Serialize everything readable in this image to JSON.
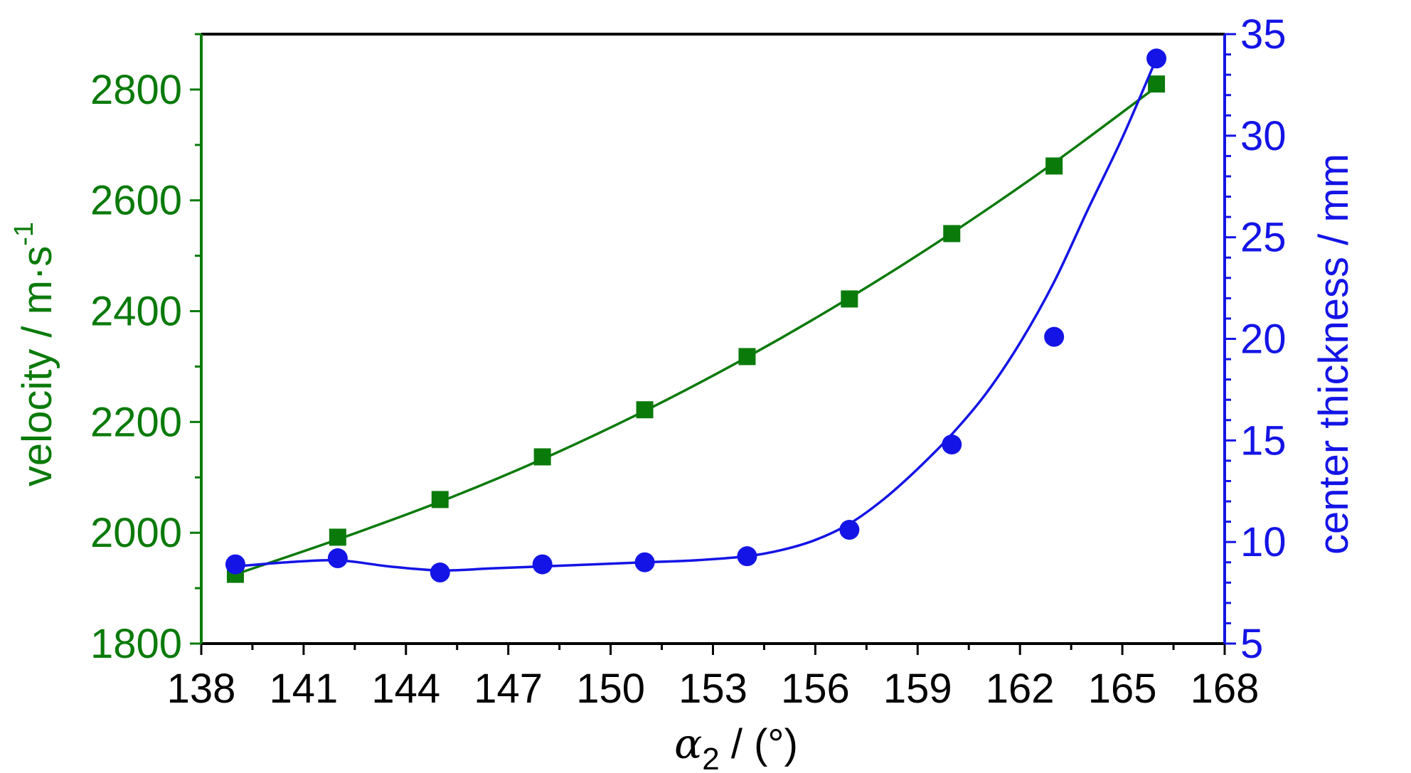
{
  "chart_data": {
    "type": "line",
    "x_axis": {
      "label_symbol": "α",
      "label_subscript": "2",
      "label_unit": " / (°)",
      "range": [
        138,
        168
      ],
      "ticks": [
        138,
        141,
        144,
        147,
        150,
        153,
        156,
        159,
        162,
        165,
        168
      ],
      "minor_step": 1.5
    },
    "y_left": {
      "label_main": "velocity / m·s",
      "label_superscript": "-1",
      "range": [
        1800,
        2900
      ],
      "ticks": [
        1800,
        2000,
        2200,
        2400,
        2600,
        2800
      ],
      "minor_step": 100,
      "color": "#0a7a0a"
    },
    "y_right": {
      "label": "center thickness / mm",
      "range": [
        5,
        35
      ],
      "ticks": [
        5,
        10,
        15,
        20,
        25,
        30,
        35
      ],
      "minor_step": 1,
      "color": "#1414e6"
    },
    "series": [
      {
        "axis": "left",
        "marker": "square",
        "color": "#0a7a0a",
        "x": [
          139,
          142,
          145,
          148,
          151,
          154,
          157,
          160,
          163,
          166
        ],
        "y": [
          1925,
          1992,
          2060,
          2137,
          2222,
          2318,
          2422,
          2540,
          2662,
          2810
        ],
        "fit_y": [
          1925,
          1988,
          2056,
          2133,
          2220,
          2317,
          2424,
          2541,
          2668,
          2805
        ]
      },
      {
        "axis": "right",
        "marker": "circle",
        "color": "#1414e6",
        "x": [
          139,
          142,
          145,
          148,
          151,
          154,
          157,
          160,
          163,
          166
        ],
        "y": [
          8.9,
          9.2,
          8.5,
          8.9,
          9.0,
          9.3,
          10.6,
          14.8,
          20.1,
          33.8
        ],
        "fit_x": [
          139,
          140.5,
          142,
          143.5,
          145,
          146.5,
          148,
          149.5,
          151,
          152.5,
          154,
          155,
          156,
          157,
          158,
          159,
          160,
          161,
          162,
          163,
          164,
          165,
          166
        ],
        "fit_y": [
          8.8,
          9.0,
          9.1,
          8.8,
          8.6,
          8.7,
          8.8,
          8.9,
          9.0,
          9.1,
          9.3,
          9.6,
          10.1,
          10.9,
          12.1,
          13.6,
          15.3,
          17.3,
          19.8,
          22.8,
          26.4,
          29.9,
          33.8
        ]
      }
    ]
  }
}
